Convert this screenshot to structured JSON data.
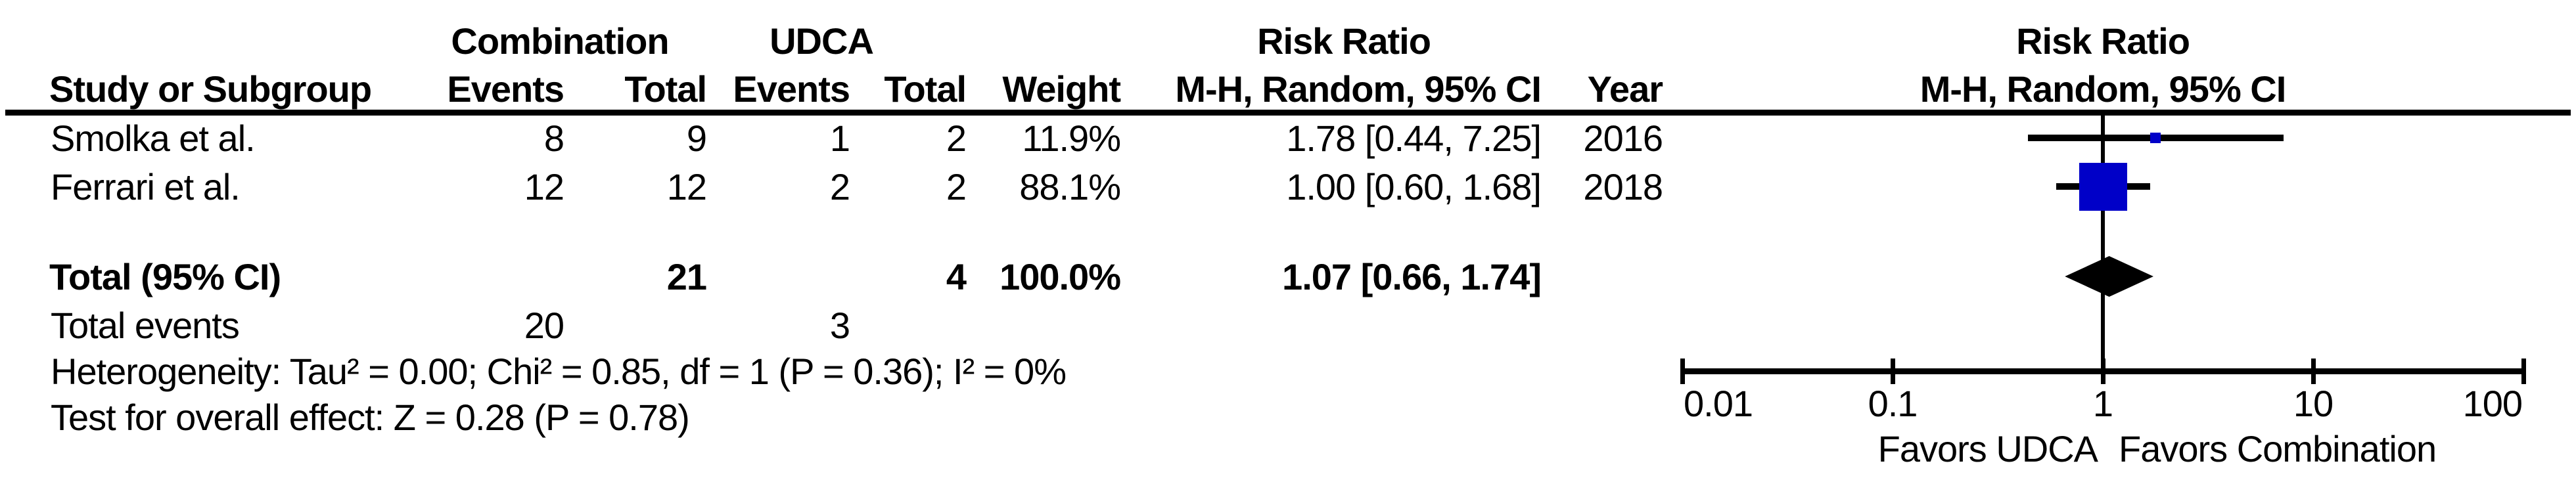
{
  "header": {
    "group1": "Combination",
    "group2": "UDCA",
    "effect_col_line1": "Risk Ratio",
    "effect_col_line2": "M-H, Random, 95% CI",
    "plot_col_line1": "Risk Ratio",
    "plot_col_line2": "M-H, Random, 95% CI",
    "study": "Study or Subgroup",
    "events1": "Events",
    "total1": "Total",
    "events2": "Events",
    "total2": "Total",
    "weight": "Weight",
    "year": "Year"
  },
  "rows": [
    {
      "study": "Smolka et al.",
      "events1": "8",
      "total1": "9",
      "events2": "1",
      "total2": "2",
      "weight": "11.9%",
      "ci": "1.78 [0.44, 7.25]",
      "year": "2016"
    },
    {
      "study": "Ferrari et al.",
      "events1": "12",
      "total1": "12",
      "events2": "2",
      "total2": "2",
      "weight": "88.1%",
      "ci": "1.00 [0.60, 1.68]",
      "year": "2018"
    }
  ],
  "totals": {
    "label": "Total (95% CI)",
    "total1": "21",
    "total2": "4",
    "weight": "100.0%",
    "ci": "1.07 [0.66, 1.74]"
  },
  "total_events": {
    "label": "Total events",
    "events1": "20",
    "events2": "3"
  },
  "footnotes": {
    "heterogeneity": "Heterogeneity: Tau² = 0.00; Chi² = 0.85, df = 1 (P = 0.36); I² = 0%",
    "overall_effect": "Test for overall effect: Z = 0.28 (P = 0.78)"
  },
  "chart_data": {
    "type": "forest",
    "x_scale": "log",
    "x_min": 0.01,
    "x_max": 100,
    "null_line": 1,
    "x_ticks": [
      0.01,
      0.1,
      1,
      10,
      100
    ],
    "x_tick_labels": [
      "0.01",
      "0.1",
      "1",
      "10",
      "100"
    ],
    "effect_measure": "Risk Ratio, M-H, Random, 95% CI",
    "studies": [
      {
        "name": "Smolka et al.",
        "rr": 1.78,
        "ci_low": 0.44,
        "ci_high": 7.25,
        "weight_pct": 11.9,
        "year": 2016
      },
      {
        "name": "Ferrari et al.",
        "rr": 1.0,
        "ci_low": 0.6,
        "ci_high": 1.68,
        "weight_pct": 88.1,
        "year": 2018
      }
    ],
    "summary": {
      "label": "Total (95% CI)",
      "rr": 1.07,
      "ci_low": 0.66,
      "ci_high": 1.74,
      "weight_pct": 100.0
    },
    "heterogeneity": {
      "tau2": 0.0,
      "chi2": 0.85,
      "df": 1,
      "p": 0.36,
      "i2_pct": 0
    },
    "overall_effect": {
      "z": 0.28,
      "p": 0.78
    },
    "favors_left": "Favors UDCA",
    "favors_right": "Favors Combination",
    "marker_color": "#0000C8",
    "summary_color": "#000000",
    "line_color": "#000000"
  }
}
